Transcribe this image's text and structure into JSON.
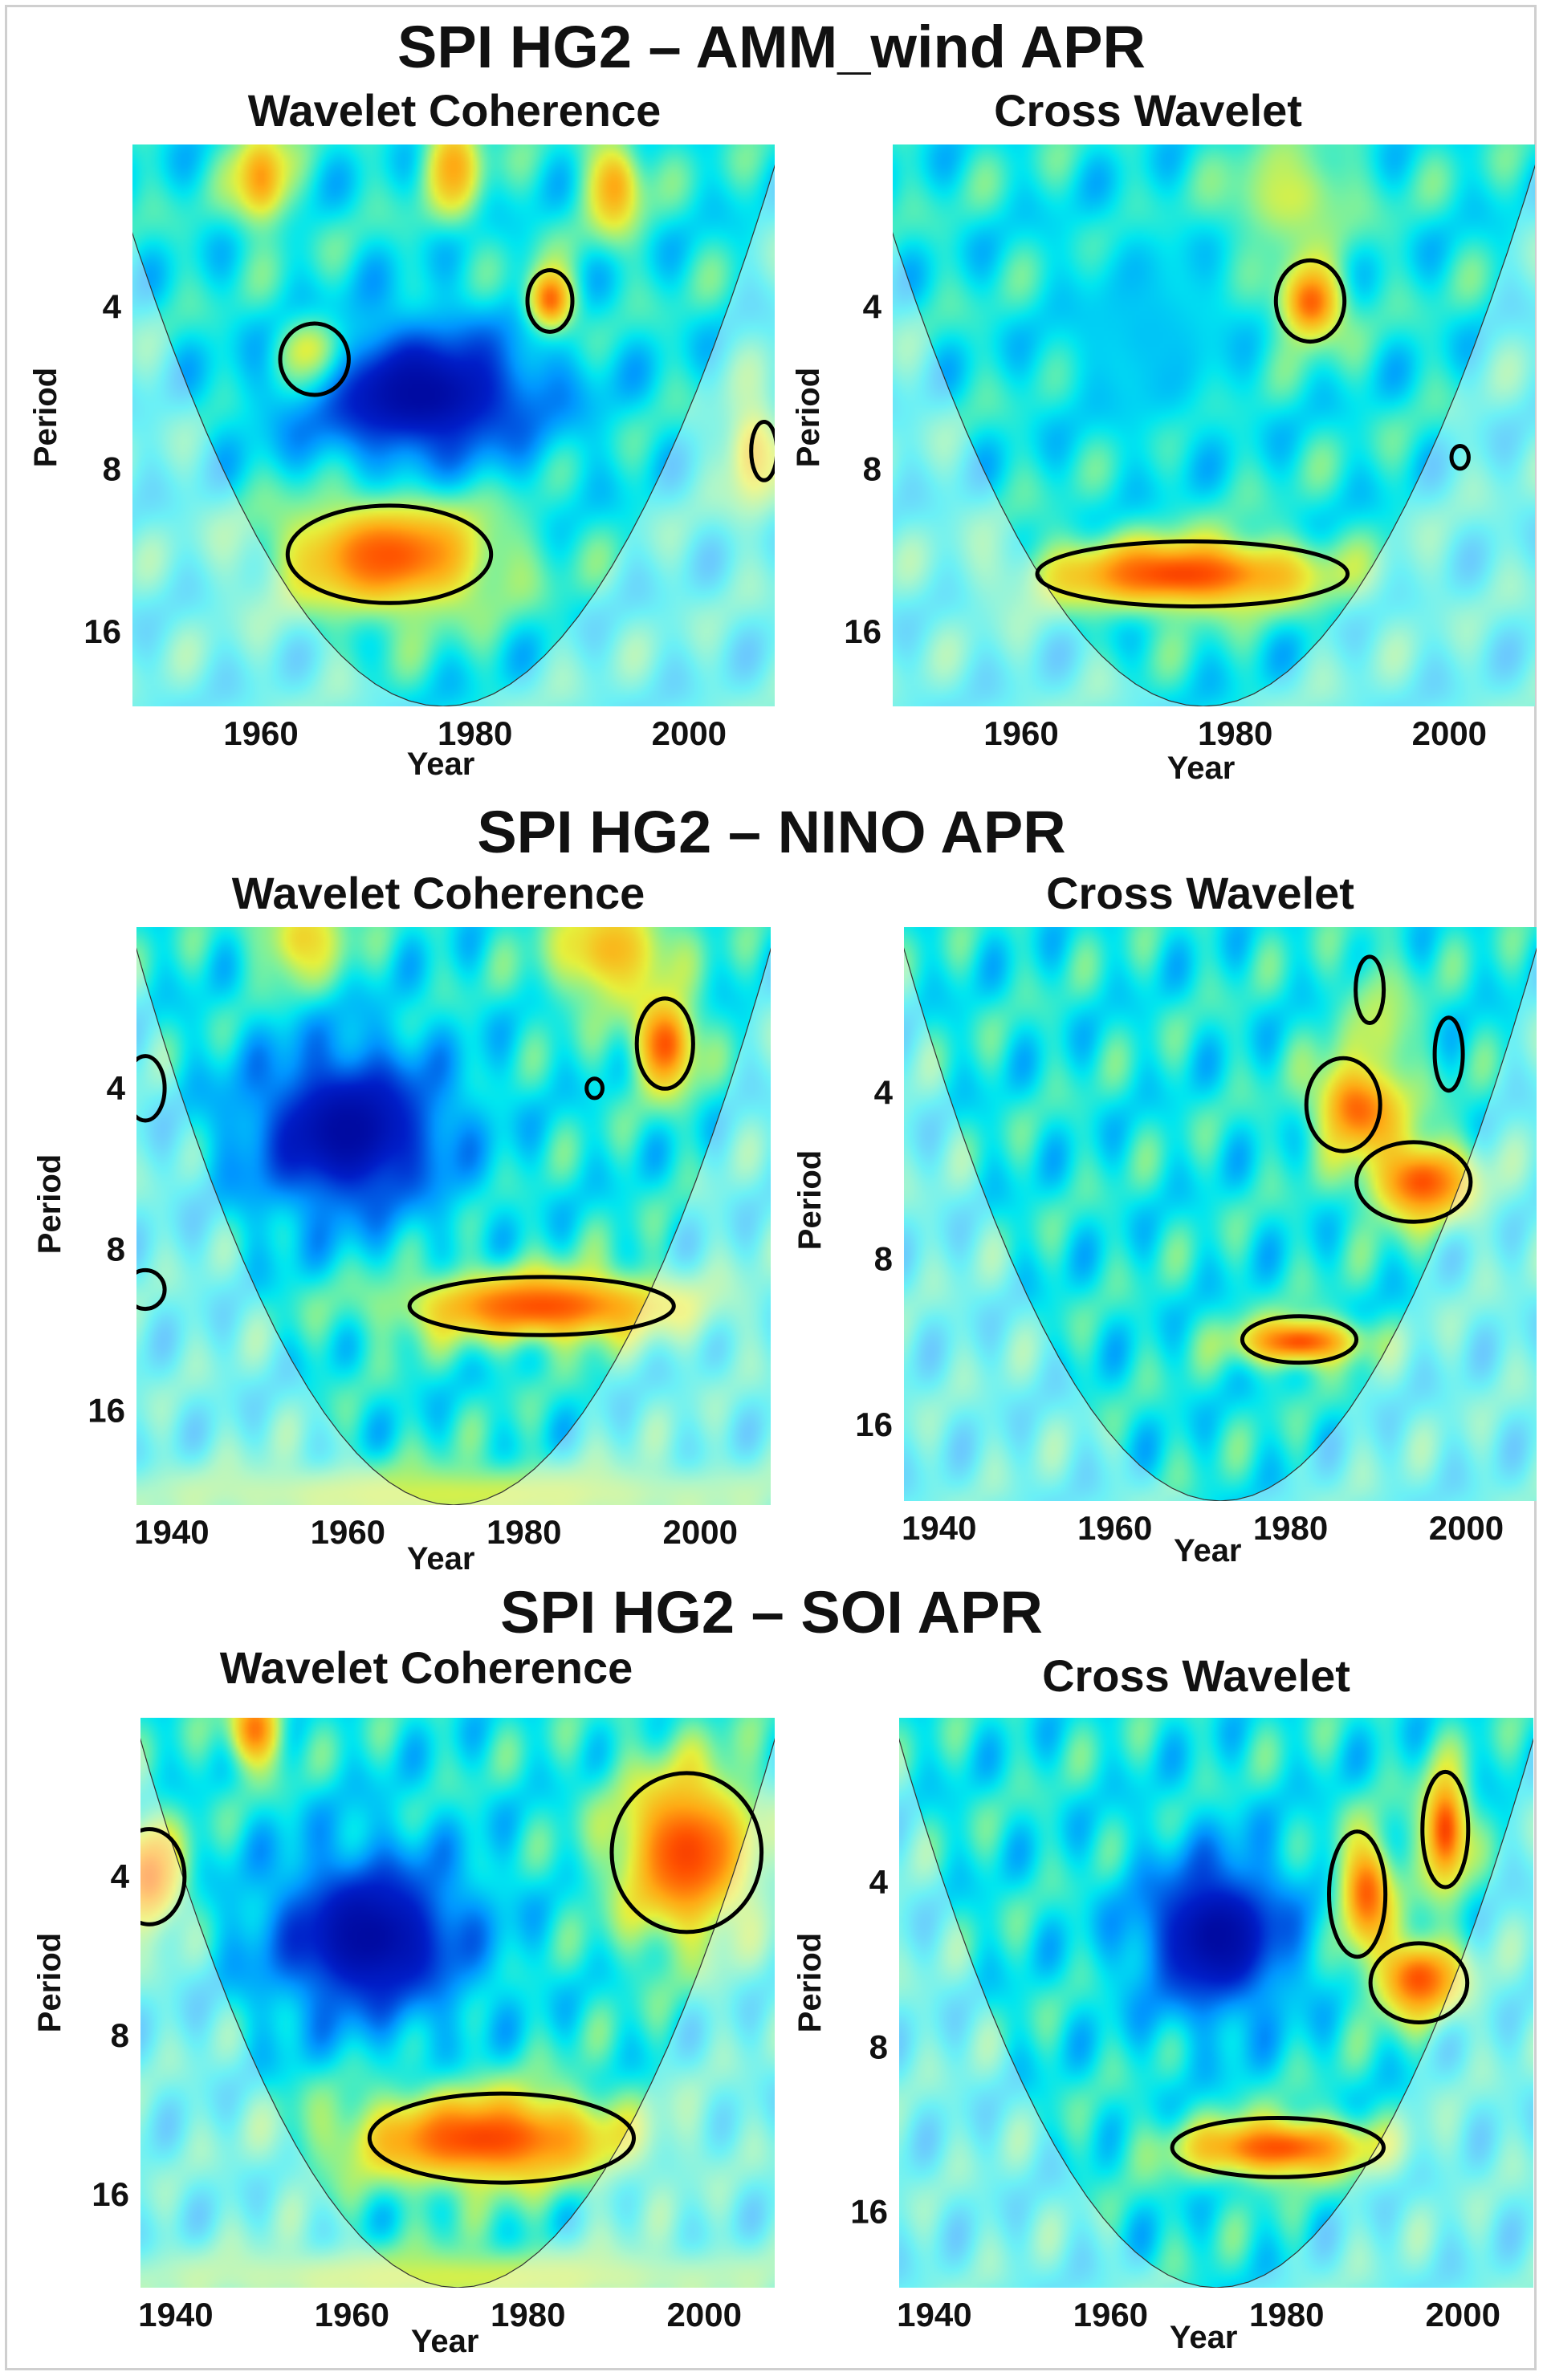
{
  "figure": {
    "axis_defaults": {
      "ylabel": "Period",
      "xlabel": "Year",
      "yticks": [
        4,
        8,
        16
      ]
    }
  },
  "sections": [
    {
      "title": "SPI HG2 – AMM_wind APR",
      "panels": [
        {
          "title": "Wavelet Coherence",
          "xticks": [
            1960,
            1980,
            2000
          ]
        },
        {
          "title": "Cross Wavelet",
          "xticks": [
            1960,
            1980,
            2000
          ]
        }
      ]
    },
    {
      "title": "SPI HG2 – NINO APR",
      "panels": [
        {
          "title": "Wavelet Coherence",
          "xticks": [
            1940,
            1960,
            1980,
            2000
          ]
        },
        {
          "title": "Cross Wavelet",
          "xticks": [
            1940,
            1960,
            1980,
            2000
          ]
        }
      ]
    },
    {
      "title": "SPI HG2 – SOI APR",
      "panels": [
        {
          "title": "Wavelet Coherence",
          "xticks": [
            1940,
            1960,
            1980,
            2000
          ]
        },
        {
          "title": "Cross Wavelet",
          "xticks": [
            1940,
            1960,
            1980,
            2000
          ]
        }
      ]
    }
  ],
  "chart_data": [
    {
      "type": "heatmap",
      "section": "SPI HG2 – AMM_wind APR",
      "title": "Wavelet Coherence",
      "xlabel": "Year",
      "ylabel": "Period",
      "xlim": [
        1948,
        2008
      ],
      "ylim_period": [
        2,
        22
      ],
      "y_scale": "log2",
      "yticks": [
        4,
        8,
        16
      ],
      "xticks": [
        1960,
        1980,
        2000
      ],
      "cone_of_influence": {
        "apex_year": 1977,
        "center_year": 1977,
        "min_period": 2
      },
      "blobs": [
        {
          "year": 1972,
          "period": 11.5,
          "w": 10,
          "h": 0.36,
          "v": 0.9
        },
        {
          "year": 1965,
          "period": 5,
          "w": 3.2,
          "h": 0.22,
          "v": 0.95
        },
        {
          "year": 1987,
          "period": 3.9,
          "w": 2.2,
          "h": 0.2,
          "v": 0.93
        },
        {
          "year": 1960,
          "period": 2.3,
          "w": 2.6,
          "h": 0.3,
          "v": 0.8
        },
        {
          "year": 1978,
          "period": 2.2,
          "w": 2.6,
          "h": 0.3,
          "v": 0.78
        },
        {
          "year": 1993,
          "period": 2.4,
          "w": 2.6,
          "h": 0.3,
          "v": 0.78
        },
        {
          "year": 2006,
          "period": 7.5,
          "w": 2.5,
          "h": 0.35,
          "v": 0.72
        },
        {
          "year": 1975,
          "period": 5.8,
          "w": 12,
          "h": 0.45,
          "v": 0.05
        }
      ],
      "significance_contours": [
        {
          "year": 1972,
          "period": 11.5,
          "w": 9.5,
          "h": 0.3
        },
        {
          "year": 1965,
          "period": 5,
          "w": 3.2,
          "h": 0.22
        },
        {
          "year": 1987,
          "period": 3.9,
          "w": 2.1,
          "h": 0.19
        },
        {
          "year": 2007,
          "period": 7.4,
          "w": 1.2,
          "h": 0.18
        }
      ]
    },
    {
      "type": "heatmap",
      "section": "SPI HG2 – AMM_wind APR",
      "title": "Cross Wavelet",
      "xlabel": "Year",
      "ylabel": "Period",
      "xlim": [
        1948,
        2008
      ],
      "ylim_period": [
        2,
        22
      ],
      "y_scale": "log2",
      "yticks": [
        4,
        8,
        16
      ],
      "xticks": [
        1960,
        1980,
        2000
      ],
      "cone_of_influence": {
        "apex_year": 1977,
        "center_year": 1977,
        "min_period": 2
      },
      "blobs": [
        {
          "year": 1975,
          "period": 12.5,
          "w": 13,
          "h": 0.22,
          "v": 0.92
        },
        {
          "year": 1987,
          "period": 3.9,
          "w": 3,
          "h": 0.25,
          "v": 0.9
        },
        {
          "year": 1985,
          "period": 2.5,
          "w": 6,
          "h": 0.35,
          "v": 0.62
        },
        {
          "year": 1972,
          "period": 4.5,
          "w": 8,
          "h": 0.6,
          "v": 0.35
        }
      ],
      "significance_contours": [
        {
          "year": 1976,
          "period": 12.5,
          "w": 14.5,
          "h": 0.2
        },
        {
          "year": 1987,
          "period": 3.9,
          "w": 3.2,
          "h": 0.25
        },
        {
          "year": 2001,
          "period": 7.6,
          "w": 0.8,
          "h": 0.07
        }
      ]
    },
    {
      "type": "heatmap",
      "section": "SPI HG2 – NINO APR",
      "title": "Wavelet Coherence",
      "xlabel": "Year",
      "ylabel": "Period",
      "xlim": [
        1936,
        2008
      ],
      "ylim_period": [
        2,
        24
      ],
      "y_scale": "log2",
      "yticks": [
        4,
        8,
        16
      ],
      "xticks": [
        1940,
        1960,
        1980,
        2000
      ],
      "cone_of_influence": {
        "apex_year": 1972,
        "center_year": 1972,
        "min_period": 2
      },
      "blobs": [
        {
          "year": 1982,
          "period": 10.2,
          "w": 16,
          "h": 0.22,
          "v": 0.9
        },
        {
          "year": 1996,
          "period": 3.3,
          "w": 3.5,
          "h": 0.3,
          "v": 0.9
        },
        {
          "year": 1990,
          "period": 2.2,
          "w": 7,
          "h": 0.35,
          "v": 0.75
        },
        {
          "year": 1955,
          "period": 2.1,
          "w": 5,
          "h": 0.3,
          "v": 0.7
        },
        {
          "year": 1972,
          "period": 23,
          "w": 40,
          "h": 0.2,
          "v": 0.62
        },
        {
          "year": 1960,
          "period": 4.8,
          "w": 12,
          "h": 0.55,
          "v": 0.05
        }
      ],
      "significance_contours": [
        {
          "year": 1982,
          "period": 10.2,
          "w": 15,
          "h": 0.18
        },
        {
          "year": 1996,
          "period": 3.3,
          "w": 3.2,
          "h": 0.28
        },
        {
          "year": 1988,
          "period": 4,
          "w": 0.9,
          "h": 0.06
        },
        {
          "year": 1937,
          "period": 4,
          "w": 2.2,
          "h": 0.2
        },
        {
          "year": 1937,
          "period": 9.5,
          "w": 2.2,
          "h": 0.12
        }
      ]
    },
    {
      "type": "heatmap",
      "section": "SPI HG2 – NINO APR",
      "title": "Cross Wavelet",
      "xlabel": "Year",
      "ylabel": "Period",
      "xlim": [
        1936,
        2008
      ],
      "ylim_period": [
        2,
        22
      ],
      "y_scale": "log2",
      "yticks": [
        4,
        8,
        16
      ],
      "xticks": [
        1940,
        1960,
        1980,
        2000
      ],
      "cone_of_influence": {
        "apex_year": 1972,
        "center_year": 1972,
        "min_period": 2
      },
      "blobs": [
        {
          "year": 1981,
          "period": 11.3,
          "w": 7,
          "h": 0.14,
          "v": 0.9
        },
        {
          "year": 1988,
          "period": 4.2,
          "w": 5,
          "h": 0.3,
          "v": 0.92
        },
        {
          "year": 1995,
          "period": 5.8,
          "w": 6,
          "h": 0.25,
          "v": 0.9
        },
        {
          "year": 1990,
          "period": 3,
          "w": 4,
          "h": 0.4,
          "v": 0.6
        }
      ],
      "significance_contours": [
        {
          "year": 1981,
          "period": 11.2,
          "w": 6.5,
          "h": 0.14
        },
        {
          "year": 1986,
          "period": 4.2,
          "w": 4.2,
          "h": 0.28
        },
        {
          "year": 1994,
          "period": 5.8,
          "w": 6.5,
          "h": 0.24
        },
        {
          "year": 1989,
          "period": 2.6,
          "w": 1.6,
          "h": 0.2
        },
        {
          "year": 1998,
          "period": 3.4,
          "w": 1.6,
          "h": 0.22
        }
      ]
    },
    {
      "type": "heatmap",
      "section": "SPI HG2 – SOI APR",
      "title": "Wavelet Coherence",
      "xlabel": "Year",
      "ylabel": "Period",
      "xlim": [
        1936,
        2008
      ],
      "ylim_period": [
        2,
        24
      ],
      "y_scale": "log2",
      "yticks": [
        4,
        8,
        16
      ],
      "xticks": [
        1940,
        1960,
        1980,
        2000
      ],
      "cone_of_influence": {
        "apex_year": 1972,
        "center_year": 1972,
        "min_period": 2
      },
      "blobs": [
        {
          "year": 1975,
          "period": 12.5,
          "w": 16,
          "h": 0.3,
          "v": 0.92
        },
        {
          "year": 1998,
          "period": 3.6,
          "w": 8,
          "h": 0.55,
          "v": 0.92
        },
        {
          "year": 1937,
          "period": 4,
          "w": 4,
          "h": 0.35,
          "v": 0.85
        },
        {
          "year": 1949,
          "period": 2.1,
          "w": 3,
          "h": 0.25,
          "v": 0.85
        },
        {
          "year": 1972,
          "period": 23,
          "w": 40,
          "h": 0.2,
          "v": 0.62
        },
        {
          "year": 1962,
          "period": 5.2,
          "w": 12,
          "h": 0.55,
          "v": 0.05
        }
      ],
      "significance_contours": [
        {
          "year": 1977,
          "period": 12.5,
          "w": 15,
          "h": 0.28
        },
        {
          "year": 1998,
          "period": 3.6,
          "w": 8.5,
          "h": 0.5
        },
        {
          "year": 1937,
          "period": 4,
          "w": 4,
          "h": 0.3
        }
      ]
    },
    {
      "type": "heatmap",
      "section": "SPI HG2 – SOI APR",
      "title": "Cross Wavelet",
      "xlabel": "Year",
      "ylabel": "Period",
      "xlim": [
        1936,
        2008
      ],
      "ylim_period": [
        2,
        22
      ],
      "y_scale": "log2",
      "yticks": [
        4,
        8,
        16
      ],
      "xticks": [
        1940,
        1960,
        1980,
        2000
      ],
      "cone_of_influence": {
        "apex_year": 1972,
        "center_year": 1972,
        "min_period": 2
      },
      "blobs": [
        {
          "year": 1979,
          "period": 12.2,
          "w": 11,
          "h": 0.18,
          "v": 0.9
        },
        {
          "year": 1989,
          "period": 4.2,
          "w": 3.2,
          "h": 0.35,
          "v": 0.9
        },
        {
          "year": 1998,
          "period": 3.2,
          "w": 2.6,
          "h": 0.35,
          "v": 0.92
        },
        {
          "year": 1995,
          "period": 6,
          "w": 5,
          "h": 0.25,
          "v": 0.9
        },
        {
          "year": 1972,
          "period": 5,
          "w": 9,
          "h": 0.5,
          "v": 0.05
        }
      ],
      "significance_contours": [
        {
          "year": 1979,
          "period": 12.2,
          "w": 12,
          "h": 0.18
        },
        {
          "year": 1988,
          "period": 4.2,
          "w": 3.2,
          "h": 0.38
        },
        {
          "year": 1998,
          "period": 3.2,
          "w": 2.6,
          "h": 0.35
        },
        {
          "year": 1995,
          "period": 6.1,
          "w": 5.5,
          "h": 0.24
        }
      ]
    }
  ]
}
